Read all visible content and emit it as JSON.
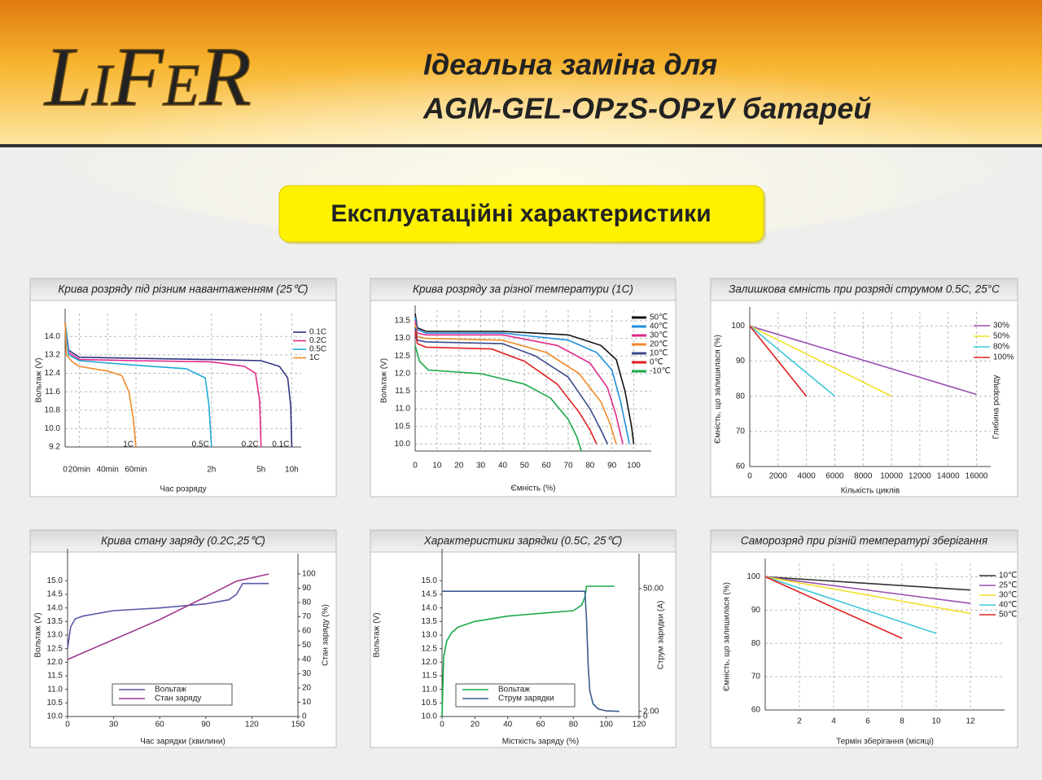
{
  "header": {
    "logo": "LiFeR",
    "headline": [
      "Ідеальна заміна для",
      "AGM-GEL-OPzS-OPzV батарей"
    ]
  },
  "section_title": "Експлуатаційні характеристики",
  "chart_data": [
    {
      "type": "line",
      "title": "Крива розряду під різним навантаженням (25℃)",
      "xlabel": "Час розряду",
      "ylabel": "Вольтаж (V)",
      "grid": true,
      "legend": "upper right",
      "ylim": [
        9.2,
        15.0
      ],
      "yticks": [
        9.2,
        {
          "value": 10,
          "label": "10.0"
        },
        10.8,
        11.6,
        12.4,
        13.2,
        {
          "value": 14,
          "label": "14.0"
        }
      ],
      "xticks": [
        0,
        {
          "value": 20,
          "label": "20min"
        },
        {
          "value": 40,
          "label": "40min"
        },
        {
          "value": 60,
          "label": "60min"
        },
        {
          "value": 120,
          "label": "2h"
        },
        {
          "value": 300,
          "label": "5h"
        },
        {
          "value": 600,
          "label": "10h"
        }
      ],
      "annotations": [
        "1C",
        "0.5C",
        "0.2C",
        "0.1C"
      ],
      "series": [
        {
          "name": "0.1C",
          "color": "#2e3180",
          "x": [
            0,
            5,
            20,
            60,
            120,
            300,
            480,
            560,
            590,
            600
          ],
          "values": [
            14.6,
            13.4,
            13.1,
            13.05,
            13.0,
            12.95,
            12.7,
            12.2,
            11.0,
            9.2
          ]
        },
        {
          "name": "0.2C",
          "color": "#e0288a",
          "x": [
            0,
            5,
            20,
            60,
            120,
            240,
            280,
            295,
            300
          ],
          "values": [
            14.6,
            13.3,
            13.0,
            12.95,
            12.9,
            12.7,
            12.4,
            11.2,
            9.2
          ]
        },
        {
          "name": "0.5C",
          "color": "#1fa8d8",
          "x": [
            0,
            5,
            20,
            40,
            60,
            100,
            115,
            118,
            120
          ],
          "values": [
            14.6,
            13.2,
            12.95,
            12.85,
            12.75,
            12.6,
            12.2,
            11.0,
            9.2
          ]
        },
        {
          "name": "1C",
          "color": "#f08a2a",
          "x": [
            0,
            2,
            10,
            20,
            40,
            50,
            55,
            58,
            60
          ],
          "values": [
            14.6,
            13.2,
            12.9,
            12.7,
            12.5,
            12.3,
            11.6,
            10.5,
            9.2
          ]
        }
      ]
    },
    {
      "type": "line",
      "title": "Крива розряду за різної температури (1C)",
      "xlabel": "Ємність (%)",
      "ylabel": "Вольтаж (V)",
      "grid": true,
      "legend": "upper right",
      "xlim": [
        0,
        108
      ],
      "xticks": [
        0,
        10,
        20,
        30,
        40,
        50,
        60,
        70,
        80,
        90,
        100
      ],
      "ylim": [
        9.8,
        13.8
      ],
      "yticks": [
        {
          "value": 10,
          "label": "10.0"
        },
        10.5,
        {
          "value": 11,
          "label": "11.0"
        },
        11.5,
        {
          "value": 12,
          "label": "12.0"
        },
        12.5,
        {
          "value": 13,
          "label": "13.0"
        },
        13.5
      ],
      "series": [
        {
          "name": "50℃",
          "color": "#111111",
          "x": [
            0,
            1,
            5,
            40,
            70,
            85,
            92,
            96,
            99,
            100
          ],
          "values": [
            13.7,
            13.3,
            13.2,
            13.2,
            13.1,
            12.8,
            12.4,
            11.5,
            10.5,
            10.0
          ]
        },
        {
          "name": "40℃",
          "color": "#1f8fe0",
          "x": [
            0,
            1,
            5,
            40,
            70,
            83,
            90,
            94,
            97,
            98
          ],
          "values": [
            13.6,
            13.25,
            13.15,
            13.15,
            12.95,
            12.6,
            12.1,
            11.2,
            10.3,
            10.0
          ]
        },
        {
          "name": "30℃",
          "color": "#e0288a",
          "x": [
            0,
            1,
            5,
            40,
            65,
            80,
            88,
            92,
            95
          ],
          "values": [
            13.5,
            13.15,
            13.1,
            13.1,
            12.8,
            12.3,
            11.6,
            10.8,
            10.0
          ]
        },
        {
          "name": "20℃",
          "color": "#f08a2a",
          "x": [
            0,
            1,
            5,
            40,
            60,
            75,
            85,
            89,
            92
          ],
          "values": [
            13.4,
            13.05,
            13.0,
            12.95,
            12.6,
            12.0,
            11.2,
            10.6,
            10.0
          ]
        },
        {
          "name": "10℃",
          "color": "#3a4a8a",
          "x": [
            0,
            1,
            5,
            40,
            55,
            70,
            80,
            85,
            88
          ],
          "values": [
            13.3,
            12.95,
            12.9,
            12.85,
            12.5,
            11.9,
            11.0,
            10.4,
            10.0
          ]
        },
        {
          "name": "0℃",
          "color": "#e02020",
          "x": [
            0,
            1,
            5,
            35,
            50,
            65,
            75,
            80,
            83
          ],
          "values": [
            13.2,
            12.85,
            12.75,
            12.7,
            12.35,
            11.7,
            10.9,
            10.4,
            10.0
          ]
        },
        {
          "name": "-10℃",
          "color": "#1aa84a",
          "x": [
            0,
            2,
            6,
            30,
            50,
            62,
            70,
            74,
            76
          ],
          "values": [
            12.8,
            12.35,
            12.1,
            12.0,
            11.7,
            11.3,
            10.7,
            10.2,
            9.8
          ]
        }
      ]
    },
    {
      "type": "line",
      "title": "Залишкова ємність при розряді струмом 0.5C, 25°C",
      "xlabel": "Кількість циклів",
      "ylabel": "Ємність, що залишилася (%)",
      "legend_title": "Глибина розряду",
      "grid": true,
      "legend": "upper right",
      "xlim": [
        0,
        17000
      ],
      "xticks": [
        0,
        2000,
        4000,
        6000,
        8000,
        10000,
        12000,
        14000,
        16000
      ],
      "ylim": [
        60,
        104
      ],
      "yticks": [
        60,
        70,
        80,
        90,
        100
      ],
      "series": [
        {
          "name": "30%",
          "color": "#9b4fb0",
          "x": [
            0,
            16000
          ],
          "values": [
            100,
            80.5
          ]
        },
        {
          "name": "50%",
          "color": "#f2e02a",
          "x": [
            0,
            10000
          ],
          "values": [
            100,
            80
          ]
        },
        {
          "name": "80%",
          "color": "#3cc8d8",
          "x": [
            0,
            6000
          ],
          "values": [
            100,
            80
          ]
        },
        {
          "name": "100%",
          "color": "#e02020",
          "x": [
            0,
            4000
          ],
          "values": [
            100,
            80
          ]
        }
      ]
    },
    {
      "type": "line",
      "title": "Крива стану заряду (0.2C,25℃)",
      "xlabel": "Час зарядки (хвилини)",
      "ylabel": "Вольтаж (V)",
      "y2label": "Стан заряду (%)",
      "grid": false,
      "legend": "lower center",
      "xlim": [
        0,
        150
      ],
      "xticks": [
        0,
        30,
        60,
        90,
        120,
        150
      ],
      "ylim": [
        10,
        16
      ],
      "yticks": [
        {
          "value": 10,
          "label": "10.0"
        },
        10.5,
        {
          "value": 11,
          "label": "11.0"
        },
        11.5,
        {
          "value": 12,
          "label": "12.0"
        },
        12.5,
        {
          "value": 13,
          "label": "13.0"
        },
        13.5,
        {
          "value": 14,
          "label": "14.0"
        },
        14.5,
        {
          "value": 15,
          "label": "15.0"
        }
      ],
      "y2lim": [
        0,
        114.3
      ],
      "y2ticks": [
        0,
        10,
        20,
        30,
        40,
        50,
        60,
        70,
        80,
        90,
        100
      ],
      "series": [
        {
          "name": "Вольтаж",
          "color": "#5a5aa8",
          "x": [
            0,
            2,
            5,
            10,
            30,
            60,
            90,
            105,
            110,
            113,
            114,
            131
          ],
          "values": [
            12.5,
            13.3,
            13.6,
            13.7,
            13.9,
            14.0,
            14.15,
            14.3,
            14.5,
            14.8,
            14.9,
            14.9
          ]
        },
        {
          "name": "Стан заряду",
          "color": "#a03a8e",
          "axis": "y2",
          "x": [
            0,
            30,
            60,
            90,
            110,
            131
          ],
          "values": [
            40,
            54,
            68,
            84,
            95,
            100
          ]
        }
      ]
    },
    {
      "type": "line",
      "title": "Характеристики зарядки (0.5C, 25℃)",
      "xlabel": "Місткість заряду (%)",
      "ylabel": "Вольтаж (V)",
      "y2label": "Струм зарядки (A)",
      "grid": false,
      "legend": "lower center",
      "xlim": [
        0,
        120
      ],
      "xticks": [
        0,
        20,
        40,
        60,
        80,
        100,
        120
      ],
      "ylim": [
        10,
        16
      ],
      "yticks": [
        {
          "value": 10,
          "label": "10.0"
        },
        10.5,
        {
          "value": 11,
          "label": "11.0"
        },
        11.5,
        {
          "value": 12,
          "label": "12.0"
        },
        12.5,
        {
          "value": 13,
          "label": "13.0"
        },
        13.5,
        {
          "value": 14,
          "label": "14.0"
        },
        14.5,
        {
          "value": 15,
          "label": "15.0"
        }
      ],
      "y2lim": [
        0,
        63.7
      ],
      "y2ticks": [
        0,
        {
          "value": 2,
          "label": "2.00"
        },
        {
          "value": 50,
          "label": "50.00"
        }
      ],
      "series": [
        {
          "name": "Вольтаж",
          "color": "#1aa84a",
          "x": [
            0,
            1,
            3,
            6,
            10,
            20,
            40,
            60,
            80,
            85,
            87,
            88,
            105
          ],
          "values": [
            10.0,
            12.2,
            12.8,
            13.1,
            13.3,
            13.5,
            13.7,
            13.8,
            13.9,
            14.1,
            14.4,
            14.8,
            14.8
          ]
        },
        {
          "name": "Струм зарядки",
          "color": "#3a5a8a",
          "axis": "y2",
          "x": [
            0,
            87,
            88,
            89,
            90,
            92,
            95,
            100,
            108
          ],
          "values": [
            49,
            49,
            38,
            20,
            10,
            5,
            3,
            2.2,
            2
          ]
        }
      ]
    },
    {
      "type": "line",
      "title": "Саморозряд при різній температурі зберігання",
      "xlabel": "Термін зберігання (місяці)",
      "ylabel": "Ємність, що залишилася (%)",
      "grid": true,
      "legend": "upper right",
      "xlim": [
        0,
        14
      ],
      "xticks": [
        2,
        4,
        6,
        8,
        10,
        12
      ],
      "ylim": [
        60,
        104
      ],
      "yticks": [
        60,
        70,
        80,
        90,
        100
      ],
      "series": [
        {
          "name": "10℃",
          "color": "#333333",
          "x": [
            0,
            12
          ],
          "values": [
            100,
            96
          ]
        },
        {
          "name": "25℃",
          "color": "#9b4fb0",
          "x": [
            0,
            12
          ],
          "values": [
            100,
            92
          ]
        },
        {
          "name": "30℃",
          "color": "#f2e02a",
          "x": [
            0,
            12
          ],
          "values": [
            100,
            89
          ]
        },
        {
          "name": "40℃",
          "color": "#3cc8d8",
          "x": [
            0,
            10
          ],
          "values": [
            100,
            83
          ]
        },
        {
          "name": "50℃",
          "color": "#e02020",
          "x": [
            0,
            8
          ],
          "values": [
            100,
            81.5
          ]
        }
      ]
    }
  ]
}
